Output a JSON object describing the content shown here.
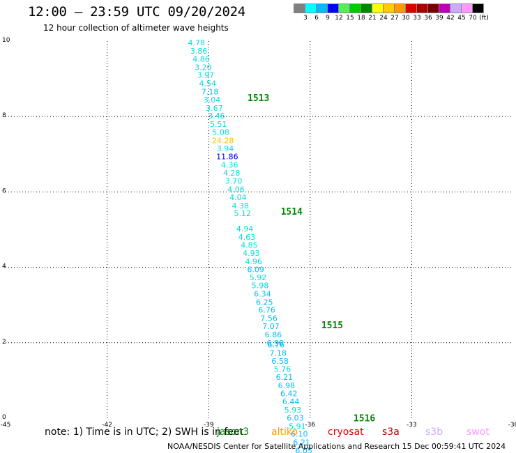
{
  "header": {
    "title": "12:00 – 23:59 UTC 09/20/2024",
    "subtitle": "12 hour collection of altimeter wave heights"
  },
  "legend": {
    "colors": [
      "#808080",
      "#00ffff",
      "#00bbff",
      "#0000ff",
      "#55ee55",
      "#00cc00",
      "#008800",
      "#ffff00",
      "#ffcc00",
      "#ff9900",
      "#dd0000",
      "#aa0000",
      "#770000",
      "#bb00bb",
      "#ccaaff",
      "#ff99ff",
      "#000000"
    ],
    "labels": [
      "3",
      "6",
      "9",
      "12",
      "15",
      "18",
      "21",
      "24",
      "27",
      "30",
      "33",
      "36",
      "39",
      "42",
      "45",
      "70",
      "(ft)"
    ]
  },
  "note": {
    "text": "note: 1) Time is in UTC; 2) SWH is in feet"
  },
  "satellites": [
    {
      "name": "jason3",
      "color": "#008800"
    },
    {
      "name": "altiko",
      "color": "#ff9900"
    },
    {
      "name": "cryosat",
      "color": "#dd0000"
    },
    {
      "name": "s3a",
      "color": "#aa0000"
    },
    {
      "name": "s3b",
      "color": "#ccaaff"
    },
    {
      "name": "swot",
      "color": "#ff99ff"
    }
  ],
  "footer": {
    "text": "NOAA/NESDIS Center for Satellite Applications and Research    15 Dec 00:59:41 UTC 2024"
  },
  "chart_data": {
    "type": "scatter",
    "xlim": [
      -45,
      -30
    ],
    "ylim": [
      0,
      10
    ],
    "x_ticks": [
      "-45",
      "-42",
      "-39",
      "-36",
      "-33",
      "-30"
    ],
    "y_ticks": [
      "0",
      "2",
      "4",
      "6",
      "8",
      "10"
    ],
    "grid": true,
    "points": [
      {
        "x": -39.36,
        "y": 9.96,
        "v": "4.78",
        "c": "#00dddd"
      },
      {
        "x": -39.29,
        "y": 9.74,
        "v": "3.86",
        "c": "#00dddd"
      },
      {
        "x": -39.22,
        "y": 9.53,
        "v": "4.86",
        "c": "#00dddd"
      },
      {
        "x": -39.16,
        "y": 9.31,
        "v": "3.20",
        "c": "#00dddd"
      },
      {
        "x": -39.09,
        "y": 9.1,
        "v": "3.97",
        "c": "#00dddd"
      },
      {
        "x": -39.03,
        "y": 8.88,
        "v": "4.54",
        "c": "#00dddd"
      },
      {
        "x": -38.96,
        "y": 8.66,
        "v": "7.18",
        "c": "#00bbff"
      },
      {
        "x": -38.9,
        "y": 8.45,
        "v": "3.04",
        "c": "#00dddd"
      },
      {
        "x": -38.83,
        "y": 8.23,
        "v": "3.67",
        "c": "#00dddd"
      },
      {
        "x": -38.77,
        "y": 8.02,
        "v": "3.46",
        "c": "#00dddd"
      },
      {
        "x": -38.71,
        "y": 7.8,
        "v": "5.51",
        "c": "#00dddd"
      },
      {
        "x": -38.64,
        "y": 7.59,
        "v": "5.08",
        "c": "#00dddd"
      },
      {
        "x": -38.58,
        "y": 7.37,
        "v": "24.28",
        "c": "#ffbb00"
      },
      {
        "x": -38.51,
        "y": 7.15,
        "v": "3.94",
        "c": "#00dddd"
      },
      {
        "x": -38.45,
        "y": 6.94,
        "v": "11.86",
        "c": "#0000dd"
      },
      {
        "x": -38.38,
        "y": 6.72,
        "v": "4.36",
        "c": "#00dddd"
      },
      {
        "x": -38.32,
        "y": 6.51,
        "v": "4.28",
        "c": "#00dddd"
      },
      {
        "x": -38.26,
        "y": 6.29,
        "v": "3.70",
        "c": "#00dddd"
      },
      {
        "x": -38.19,
        "y": 6.07,
        "v": "4.06",
        "c": "#00dddd"
      },
      {
        "x": -38.13,
        "y": 5.86,
        "v": "4.04",
        "c": "#00dddd"
      },
      {
        "x": -38.06,
        "y": 5.64,
        "v": "4.38",
        "c": "#00dddd"
      },
      {
        "x": -38.0,
        "y": 5.43,
        "v": "5.12",
        "c": "#00dddd"
      },
      {
        "x": -37.93,
        "y": 5.03,
        "v": "4.94",
        "c": "#00dddd"
      },
      {
        "x": -37.87,
        "y": 4.81,
        "v": "4.63",
        "c": "#00dddd"
      },
      {
        "x": -37.8,
        "y": 4.59,
        "v": "4.85",
        "c": "#00dddd"
      },
      {
        "x": -37.74,
        "y": 4.38,
        "v": "4.93",
        "c": "#00dddd"
      },
      {
        "x": -37.67,
        "y": 4.16,
        "v": "4.96",
        "c": "#00dddd"
      },
      {
        "x": -37.61,
        "y": 3.95,
        "v": "6.09",
        "c": "#00bbff"
      },
      {
        "x": -37.54,
        "y": 3.73,
        "v": "5.92",
        "c": "#00dddd"
      },
      {
        "x": -37.48,
        "y": 3.52,
        "v": "5.98",
        "c": "#00dddd"
      },
      {
        "x": -37.41,
        "y": 3.3,
        "v": "6.34",
        "c": "#00bbff"
      },
      {
        "x": -37.35,
        "y": 3.08,
        "v": "6.25",
        "c": "#00bbff"
      },
      {
        "x": -37.28,
        "y": 2.87,
        "v": "6.76",
        "c": "#00bbff"
      },
      {
        "x": -37.22,
        "y": 2.65,
        "v": "7.56",
        "c": "#00bbff"
      },
      {
        "x": -37.16,
        "y": 2.44,
        "v": "7.07",
        "c": "#00bbff"
      },
      {
        "x": -37.09,
        "y": 2.22,
        "v": "6.86",
        "c": "#00bbff"
      },
      {
        "x": -37.03,
        "y": 2.0,
        "v": "6.98",
        "c": "#00bbff"
      },
      {
        "x": -37.01,
        "y": 1.95,
        "v": "6.76",
        "c": "#00bbff"
      },
      {
        "x": -36.95,
        "y": 1.73,
        "v": "7.18",
        "c": "#00bbff"
      },
      {
        "x": -36.89,
        "y": 1.52,
        "v": "6.58",
        "c": "#00bbff"
      },
      {
        "x": -36.82,
        "y": 1.3,
        "v": "5.76",
        "c": "#00dddd"
      },
      {
        "x": -36.76,
        "y": 1.09,
        "v": "6.21",
        "c": "#00bbff"
      },
      {
        "x": -36.7,
        "y": 0.87,
        "v": "6.98",
        "c": "#00bbff"
      },
      {
        "x": -36.63,
        "y": 0.66,
        "v": "6.42",
        "c": "#00bbff"
      },
      {
        "x": -36.57,
        "y": 0.44,
        "v": "6.44",
        "c": "#00bbff"
      },
      {
        "x": -36.51,
        "y": 0.22,
        "v": "5.93",
        "c": "#00dddd"
      },
      {
        "x": -36.44,
        "y": 0.01,
        "v": "6.03",
        "c": "#00bbff"
      },
      {
        "x": -36.38,
        "y": -0.21,
        "v": "5.91",
        "c": "#00dddd"
      },
      {
        "x": -36.32,
        "y": -0.42,
        "v": "6.10",
        "c": "#00bbff"
      },
      {
        "x": -36.25,
        "y": -0.64,
        "v": "6.21",
        "c": "#00bbff"
      },
      {
        "x": -36.19,
        "y": -0.86,
        "v": "6.05",
        "c": "#00bbff"
      }
    ],
    "time_labels": [
      {
        "x": -37.85,
        "y": 8.48,
        "text": "1513",
        "c": "#008800"
      },
      {
        "x": -36.87,
        "y": 5.47,
        "text": "1514",
        "c": "#008800"
      },
      {
        "x": -35.67,
        "y": 2.46,
        "text": "1515",
        "c": "#008800"
      },
      {
        "x": -34.72,
        "y": -0.01,
        "text": "1516",
        "c": "#008800"
      }
    ]
  }
}
